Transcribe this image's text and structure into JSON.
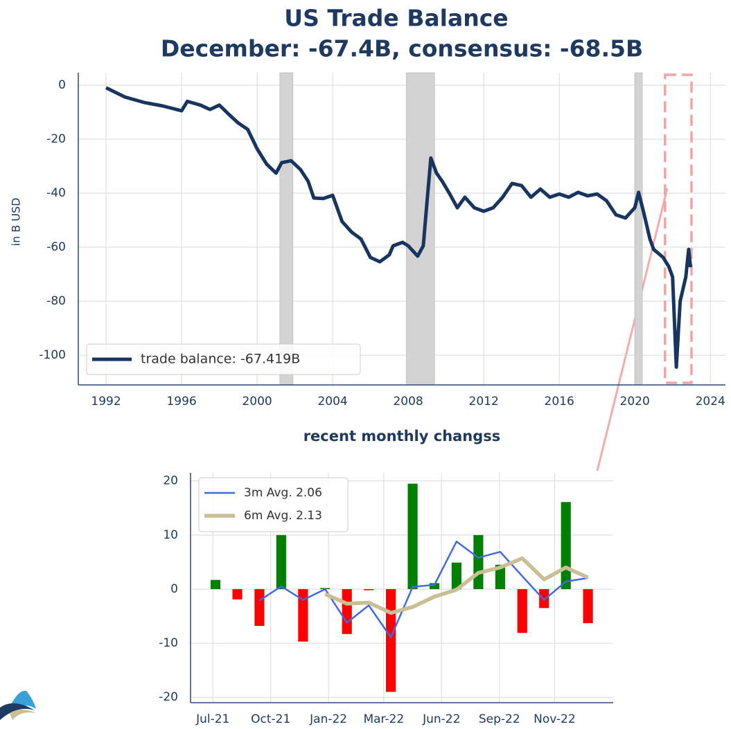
{
  "chart_data": [
    {
      "type": "line",
      "title": "US Trade Balance",
      "subtitle": "December:  -67.4B, consensus: -68.5B",
      "y_label": "in B USD",
      "x": [
        1992,
        1993,
        1994,
        1995,
        1996,
        1996.3,
        1997,
        1997.5,
        1998,
        1998.5,
        1999,
        1999.5,
        2000,
        2000.5,
        2001,
        2001.3,
        2001.8,
        2002.3,
        2002.7,
        2003,
        2003.5,
        2004,
        2004.5,
        2005,
        2005.5,
        2006,
        2006.5,
        2007,
        2007.2,
        2007.7,
        2008,
        2008.5,
        2008.8,
        2009,
        2009.2,
        2009.5,
        2009.8,
        2010.2,
        2010.6,
        2011,
        2011.5,
        2012,
        2012.5,
        2013,
        2013.5,
        2014,
        2014.5,
        2015,
        2015.5,
        2016,
        2016.5,
        2017,
        2017.5,
        2018,
        2018.5,
        2019,
        2019.5,
        2020,
        2020.2,
        2020.5,
        2020.8,
        2021,
        2021.5,
        2021.8,
        2022,
        2022.2,
        2022.4,
        2022.7,
        2022.85,
        2022.95
      ],
      "series": [
        {
          "name": "trade balance: -67.419B",
          "color": "#17355e",
          "values": [
            -1,
            -4.4,
            -6.4,
            -7.7,
            -9.5,
            -6,
            -7.4,
            -9,
            -7.4,
            -10.8,
            -14,
            -16.4,
            -23.6,
            -29.2,
            -32.6,
            -28.7,
            -28,
            -31.3,
            -35.6,
            -41.8,
            -42,
            -40.8,
            -50.5,
            -54.4,
            -57,
            -63.8,
            -65.4,
            -62.8,
            -59.5,
            -58.2,
            -59.5,
            -63.3,
            -59.5,
            -42.8,
            -27,
            -32.6,
            -35.6,
            -40.3,
            -45.4,
            -41.5,
            -45.4,
            -46.7,
            -45.4,
            -41.5,
            -36.4,
            -37.2,
            -41.5,
            -38.5,
            -41.5,
            -40.3,
            -41.5,
            -39.7,
            -41,
            -40.3,
            -42.8,
            -48,
            -49.2,
            -45.4,
            -39.7,
            -48,
            -57,
            -60.8,
            -63.8,
            -67.2,
            -71,
            -104.4,
            -80,
            -71,
            -60.8,
            -67.419
          ]
        }
      ],
      "shaded_ranges": [
        [
          2001.2,
          2001.9
        ],
        [
          2007.9,
          2009.4
        ],
        [
          2020.0,
          2020.4
        ]
      ],
      "shade_color": "#d3d3d3",
      "highlight_range": [
        2021.6,
        2023.0
      ],
      "highlight_color": "#f4a3a3",
      "xlim": [
        1990.53,
        2024.8
      ],
      "ylim": [
        -111,
        4.6
      ],
      "xticks": [
        1992,
        1996,
        2000,
        2004,
        2008,
        2012,
        2016,
        2020,
        2024
      ],
      "yticks": [
        0,
        -20,
        -40,
        -60,
        -80,
        -100
      ],
      "grid": true,
      "legend": "lower left"
    },
    {
      "type": "bar",
      "title": "recent monthly changss",
      "x": [
        2021.5,
        2021.583,
        2021.667,
        2021.75,
        2021.833,
        2021.917,
        2022.0,
        2022.083,
        2022.167,
        2022.25,
        2022.333,
        2022.417,
        2022.5,
        2022.583,
        2022.667,
        2022.75,
        2022.833,
        2022.917
      ],
      "values": [
        1.7,
        -1.9,
        -6.8,
        10.0,
        -9.7,
        0.2,
        -8.3,
        -0.2,
        -19.0,
        19.5,
        1.1,
        4.9,
        10.0,
        4.5,
        -8.1,
        -3.5,
        16.1,
        -6.3
      ],
      "positive_color": "#008000",
      "negative_color": "#ff0000",
      "series": [
        {
          "name": "3m Avg. 2.06",
          "color": "#4169e1",
          "linewidth": 2.5,
          "values": [
            null,
            null,
            -2.1,
            0.5,
            -2.0,
            0.0,
            -6.2,
            -3.0,
            -8.9,
            0.4,
            0.8,
            8.8,
            5.8,
            6.9,
            2.4,
            -2.0,
            1.4,
            2.06
          ]
        },
        {
          "name": "6m Avg. 2.13",
          "color": "#c8bf95",
          "linewidth": 5.5,
          "values": [
            null,
            null,
            null,
            null,
            null,
            -0.9,
            -2.7,
            -2.5,
            -4.4,
            -3.3,
            -1.4,
            -0.1,
            3.0,
            4.0,
            5.7,
            1.8,
            4.0,
            2.13
          ]
        }
      ],
      "xlim": [
        2021.405,
        2023.013
      ],
      "ylim": [
        -21,
        21.5
      ],
      "xticks": [
        {
          "value": 2021.49,
          "label": "Jul-21"
        },
        {
          "value": 2021.71,
          "label": "Oct-21"
        },
        {
          "value": 2021.93,
          "label": "Jan-22"
        },
        {
          "value": 2022.14,
          "label": "Mar-22"
        },
        {
          "value": 2022.36,
          "label": "Jun-22"
        },
        {
          "value": 2022.58,
          "label": "Sep-22"
        },
        {
          "value": 2022.79,
          "label": "Nov-22"
        }
      ],
      "yticks": [
        20,
        10,
        0,
        -10,
        -20
      ],
      "grid": true,
      "legend": "upper left"
    }
  ]
}
